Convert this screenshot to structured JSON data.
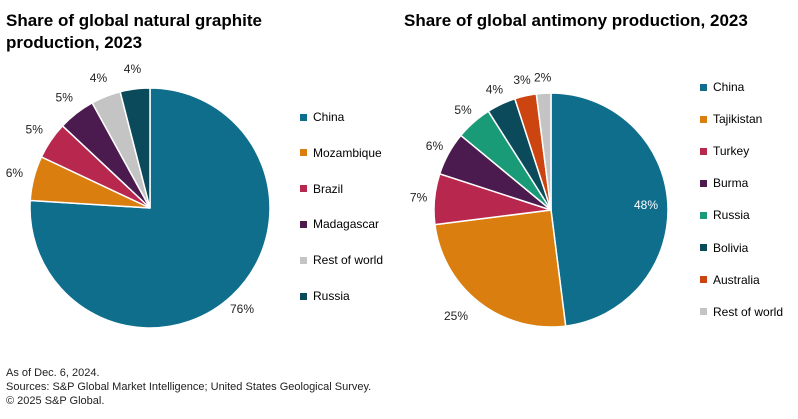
{
  "chart_data": [
    {
      "type": "pie",
      "title": "Share of global natural graphite production, 2023",
      "categories": [
        "China",
        "Mozambique",
        "Brazil",
        "Madagascar",
        "Rest of world",
        "Russia"
      ],
      "values": [
        76,
        6,
        5,
        5,
        4,
        4
      ],
      "labels": [
        "76%",
        "6%",
        "5%",
        "5%",
        "4%",
        "4%"
      ],
      "colors": [
        "#0f6e8c",
        "#d97e0f",
        "#b8284e",
        "#4b1b4f",
        "#c4c4c4",
        "#0b4a5a"
      ],
      "legend_position": "right"
    },
    {
      "type": "pie",
      "title": "Share of global antimony production, 2023",
      "categories": [
        "China",
        "Tajikistan",
        "Turkey",
        "Burma",
        "Russia",
        "Bolivia",
        "Australia",
        "Rest of world"
      ],
      "values": [
        48,
        25,
        7,
        6,
        5,
        4,
        3,
        2
      ],
      "labels": [
        "48%",
        "25%",
        "7%",
        "6%",
        "5%",
        "4%",
        "3%",
        "2%"
      ],
      "colors": [
        "#0f6e8c",
        "#d97e0f",
        "#b8284e",
        "#4b1b4f",
        "#1a9b78",
        "#0b4a5a",
        "#cc4410",
        "#c4c4c4"
      ],
      "legend_position": "right"
    }
  ],
  "footer": {
    "note": "As of Dec. 6, 2024.",
    "sources": "Sources: S&P Global Market Intelligence; United States Geological Survey.",
    "copyright": "© 2025 S&P Global."
  }
}
